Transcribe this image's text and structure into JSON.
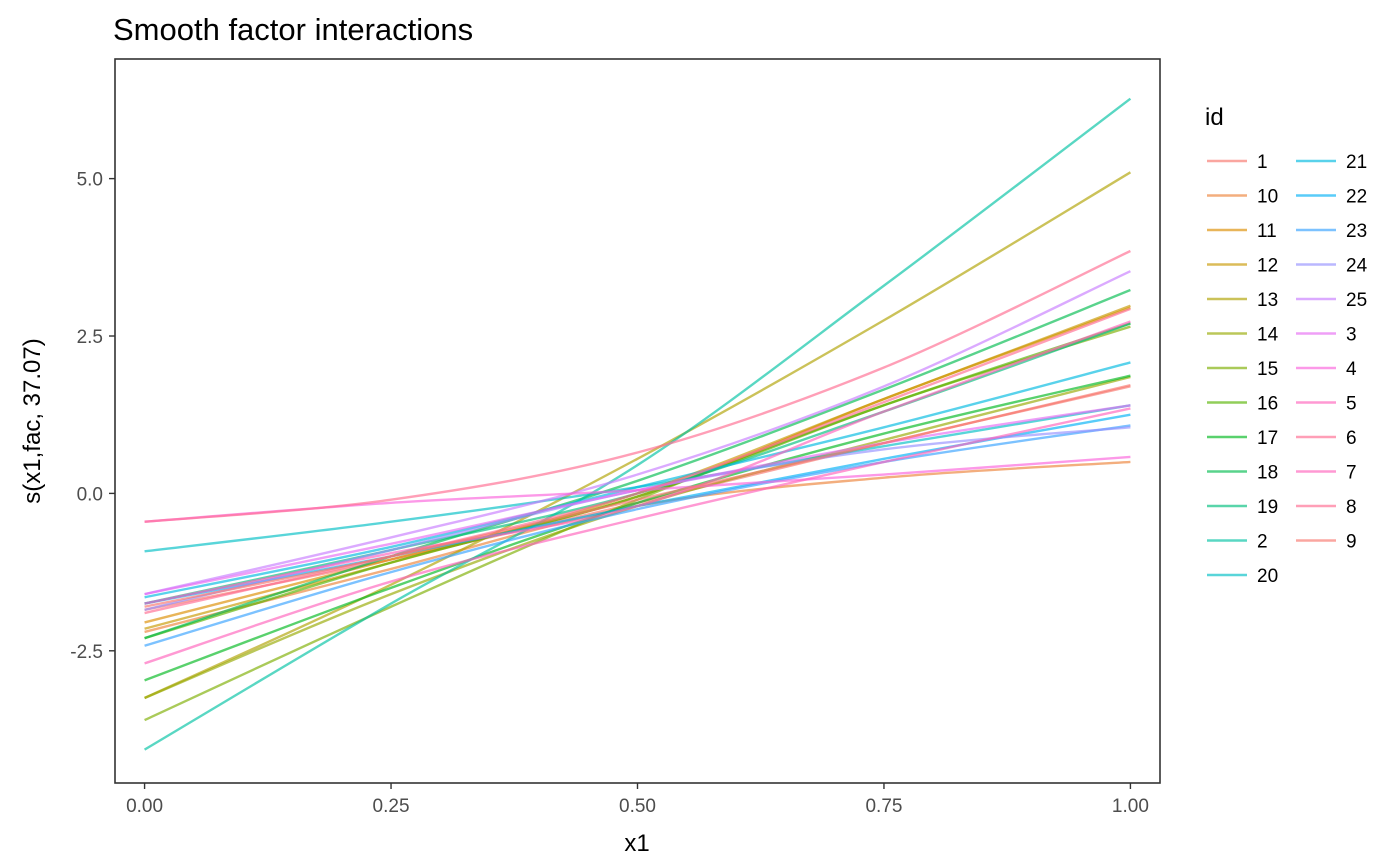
{
  "chart_data": {
    "type": "line",
    "title": "Smooth factor interactions",
    "xlabel": "x1",
    "ylabel": "s(x1,fac, 37.07)",
    "xlim": [
      -0.03,
      1.03
    ],
    "ylim": [
      -4.6,
      6.9
    ],
    "xticks": [
      0,
      0.25,
      0.5,
      0.75,
      1
    ],
    "xtick_labels": [
      "0.00",
      "0.25",
      "0.50",
      "0.75",
      "1.00"
    ],
    "yticks": [
      -2.5,
      0,
      2.5,
      5
    ],
    "ytick_labels": [
      "-2.5",
      "0.0",
      "2.5",
      "5.0"
    ],
    "grid": false,
    "legend": {
      "title": "id",
      "position": "right",
      "columns": 2
    },
    "series": [
      {
        "name": "1",
        "color": "#F8766D",
        "x": [
          0,
          0.25,
          0.5,
          0.75,
          1
        ],
        "y": [
          -1.85,
          -1.05,
          -0.15,
          0.8,
          1.7
        ]
      },
      {
        "name": "10",
        "color": "#EC8239",
        "x": [
          0,
          0.25,
          0.5,
          0.75,
          1
        ],
        "y": [
          -2.2,
          -1.2,
          -0.2,
          0.25,
          0.5
        ]
      },
      {
        "name": "11",
        "color": "#DB8E00",
        "x": [
          0,
          0.25,
          0.5,
          0.75,
          1
        ],
        "y": [
          -2.05,
          -1.05,
          -0.05,
          1.5,
          2.95
        ]
      },
      {
        "name": "12",
        "color": "#C79800",
        "x": [
          0,
          0.25,
          0.5,
          0.75,
          1
        ],
        "y": [
          -2.15,
          -1.1,
          0.0,
          1.5,
          2.98
        ]
      },
      {
        "name": "13",
        "color": "#AFA100",
        "x": [
          0,
          0.25,
          0.5,
          0.75,
          1
        ],
        "y": [
          -3.25,
          -1.45,
          0.55,
          2.75,
          5.1
        ]
      },
      {
        "name": "14",
        "color": "#96A900",
        "x": [
          0,
          0.25,
          0.5,
          0.75,
          1
        ],
        "y": [
          -3.25,
          -1.6,
          -0.2,
          0.85,
          1.85
        ]
      },
      {
        "name": "15",
        "color": "#7CAE00",
        "x": [
          0,
          0.25,
          0.5,
          0.75,
          1
        ],
        "y": [
          -3.6,
          -1.8,
          -0.1,
          1.4,
          2.65
        ]
      },
      {
        "name": "16",
        "color": "#56B400",
        "x": [
          0,
          0.25,
          0.5,
          0.75,
          1
        ],
        "y": [
          -2.3,
          -1.1,
          -0.05,
          1.4,
          2.7
        ]
      },
      {
        "name": "17",
        "color": "#00B81F",
        "x": [
          0,
          0.25,
          0.5,
          0.75,
          1
        ],
        "y": [
          -2.97,
          -1.5,
          -0.15,
          0.95,
          1.87
        ]
      },
      {
        "name": "18",
        "color": "#00BB4E",
        "x": [
          0,
          0.25,
          0.5,
          0.75,
          1
        ],
        "y": [
          -2.3,
          -1.0,
          0.2,
          1.65,
          3.23
        ]
      },
      {
        "name": "19",
        "color": "#00BF7D",
        "x": [
          0,
          0.25,
          0.5,
          0.75,
          1
        ],
        "y": [
          -1.75,
          -0.9,
          0.0,
          1.3,
          2.7
        ]
      },
      {
        "name": "2",
        "color": "#00C1A3",
        "x": [
          0,
          0.25,
          0.5,
          0.75,
          1
        ],
        "y": [
          -4.07,
          -1.75,
          0.45,
          3.3,
          6.27
        ]
      },
      {
        "name": "20",
        "color": "#00BFC4",
        "x": [
          0,
          0.25,
          0.5,
          0.75,
          1
        ],
        "y": [
          -0.92,
          -0.45,
          0.1,
          0.75,
          1.4
        ]
      },
      {
        "name": "21",
        "color": "#00BAE0",
        "x": [
          0,
          0.25,
          0.5,
          0.75,
          1
        ],
        "y": [
          -1.65,
          -0.85,
          0.1,
          1.05,
          2.08
        ]
      },
      {
        "name": "22",
        "color": "#00B0F6",
        "x": [
          0,
          0.25,
          0.5,
          0.75,
          1
        ],
        "y": [
          -1.75,
          -1.0,
          -0.2,
          0.55,
          1.25
        ]
      },
      {
        "name": "23",
        "color": "#35A2FF",
        "x": [
          0,
          0.25,
          0.5,
          0.75,
          1
        ],
        "y": [
          -2.42,
          -1.25,
          -0.25,
          0.5,
          1.08
        ]
      },
      {
        "name": "24",
        "color": "#9590FF",
        "x": [
          0,
          0.25,
          0.5,
          0.75,
          1
        ],
        "y": [
          -1.85,
          -0.9,
          0.05,
          0.7,
          1.05
        ]
      },
      {
        "name": "25",
        "color": "#C77CFF",
        "x": [
          0,
          0.25,
          0.5,
          0.75,
          1
        ],
        "y": [
          -1.6,
          -0.7,
          0.3,
          1.7,
          3.53
        ]
      },
      {
        "name": "3",
        "color": "#E76BF3",
        "x": [
          0,
          0.25,
          0.5,
          0.75,
          1
        ],
        "y": [
          -1.6,
          -0.8,
          0.05,
          0.8,
          1.4
        ]
      },
      {
        "name": "4",
        "color": "#FA62DB",
        "x": [
          0,
          0.25,
          0.5,
          0.75,
          1
        ],
        "y": [
          -0.45,
          -0.15,
          0.05,
          0.3,
          0.58
        ]
      },
      {
        "name": "5",
        "color": "#FF62BC",
        "x": [
          0,
          0.25,
          0.5,
          0.75,
          1
        ],
        "y": [
          -2.7,
          -1.4,
          -0.4,
          0.5,
          1.35
        ]
      },
      {
        "name": "6",
        "color": "#FF6C91",
        "x": [
          0,
          0.25,
          0.5,
          0.75,
          1
        ],
        "y": [
          -0.45,
          -0.1,
          0.65,
          2.0,
          3.85
        ]
      },
      {
        "name": "7",
        "color": "#FF62BC",
        "x": [
          0,
          0.25,
          0.5,
          0.75,
          1
        ],
        "y": [
          -1.75,
          -0.95,
          -0.2,
          1.3,
          2.73
        ]
      },
      {
        "name": "8",
        "color": "#FF6C91",
        "x": [
          0,
          0.25,
          0.5,
          0.75,
          1
        ],
        "y": [
          -1.9,
          -1.0,
          0.0,
          1.45,
          2.93
        ]
      },
      {
        "name": "9",
        "color": "#F8766D",
        "x": [
          0,
          0.25,
          0.5,
          0.75,
          1
        ],
        "y": [
          -1.8,
          -1.0,
          -0.1,
          0.8,
          1.72
        ]
      }
    ]
  }
}
